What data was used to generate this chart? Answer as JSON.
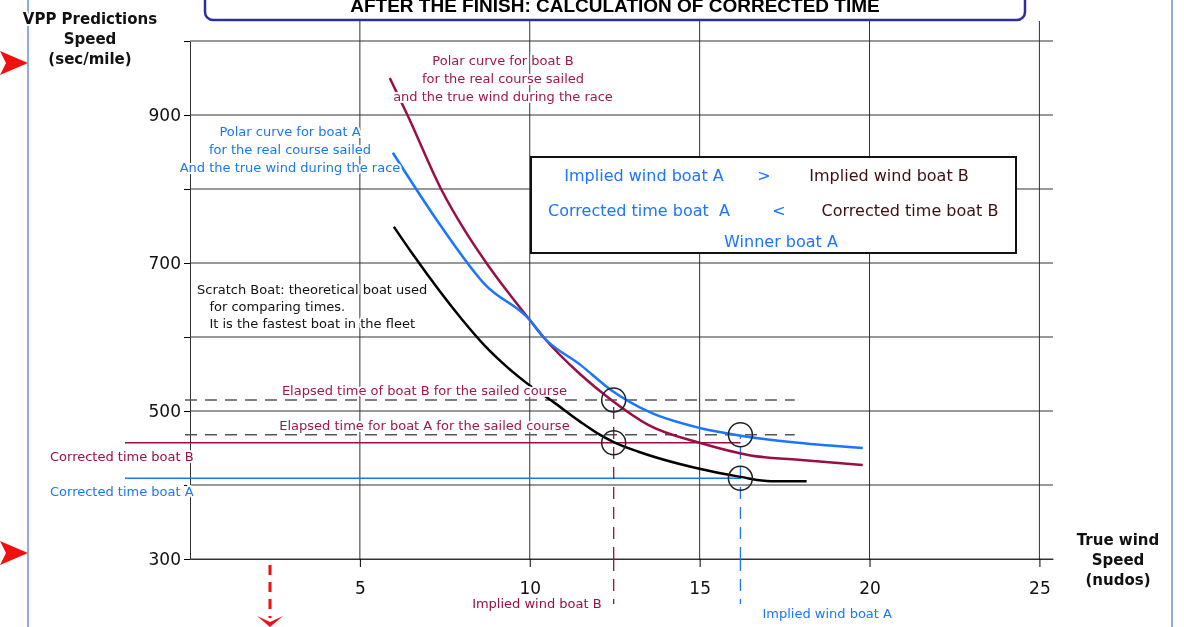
{
  "chart_data": {
    "type": "line",
    "title": "AFTER THE FINISH: CALCULATION OF CORRECTED TIME",
    "xlabel": "True wind\nSpeed\n(nudos)",
    "ylabel": "VPP Predictions\nSpeed\n(sec/mile)",
    "xlim": [
      0,
      25.4
    ],
    "ylim": [
      300,
      1000
    ],
    "xticks": [
      5,
      10,
      15,
      20,
      25
    ],
    "yticks": [
      300,
      {
        "value": 400,
        "label": null
      },
      500,
      {
        "value": 600,
        "label": null
      },
      700,
      {
        "value": 800,
        "label": null
      },
      900,
      {
        "value": 1000,
        "label": null
      }
    ],
    "grid": true,
    "marker": "none",
    "line_style": "solid",
    "series": [
      {
        "color": "#990f45",
        "x": [
          5.88,
          6.4,
          7.4,
          8.1,
          8.77,
          10,
          10.4,
          11.5,
          12.4,
          13.5,
          15,
          16.5,
          17.9,
          19.8
        ],
        "values": [
          950,
          900,
          799,
          743,
          697,
          623,
          600,
          549,
          515,
          481,
          457,
          440,
          434,
          427
        ]
      },
      {
        "color": "#1a75ff",
        "x": [
          5.97,
          7.4,
          8.7,
          10,
          10.4,
          11.5,
          12.4,
          13.5,
          15,
          16.3,
          17.9,
          19.8
        ],
        "values": [
          849,
          749,
          670,
          623,
          600,
          562,
          528,
          499,
          477,
          466,
          457,
          450
        ]
      },
      {
        "color": "#000000",
        "x": [
          6,
          6.6,
          8,
          8.68,
          9.1,
          9.9,
          10.7,
          11.47,
          12.06,
          12.47,
          13.2,
          14.8,
          16.2,
          17.1,
          18.15
        ],
        "values": [
          749,
          709,
          624,
          588,
          569,
          538,
          512,
          486,
          468,
          458,
          445,
          424,
          411,
          405,
          405
        ]
      },
      {
        "type": "scatter",
        "marker": "circle",
        "color": "#222222",
        "x": [
          12.47,
          12.47,
          16.2,
          16.2
        ],
        "values": [
          515,
          457,
          468,
          409
        ]
      }
    ],
    "ref_lines": [
      {
        "axis": "y",
        "value": 515,
        "label": "Elapsed time of boat B for the sailed course",
        "color": "#555555",
        "line_style": "dashed"
      },
      {
        "axis": "y",
        "value": 468,
        "label": "Elapsed time for boat A for the sailed course",
        "color": "#555555",
        "line_style": "dashed"
      },
      {
        "axis": "y",
        "value": 457,
        "label": "Corrected time boat B",
        "color": "#990f45",
        "line_style": "solid"
      },
      {
        "axis": "y",
        "value": 409,
        "label": "Corrected time boat A",
        "color": "#1a75ff",
        "line_style": "solid"
      },
      {
        "axis": "x",
        "value": 12.47,
        "label": "Implied wind boat B",
        "color": "#990f45",
        "line_style": "dashed"
      },
      {
        "axis": "x",
        "value": 16.2,
        "label": "Implied wind boat A",
        "color": "#1a75ff",
        "line_style": "dashed"
      }
    ],
    "annotations": [
      "Polar curve for boat B\nfor the real course sailed\nand the true wind during the race",
      "Polar curve for boat A\nfor the real course sailed\nAnd the true wind during the race",
      "Scratch Boat: theoretical boat used\n   for comparing times.\n   It is the fastest boat in the fleet",
      "Implied wind boat A",
      ">",
      "Implied wind boat B",
      "Corrected time boat  A",
      "<",
      "Corrected time boat B",
      "Winner boat A"
    ]
  }
}
